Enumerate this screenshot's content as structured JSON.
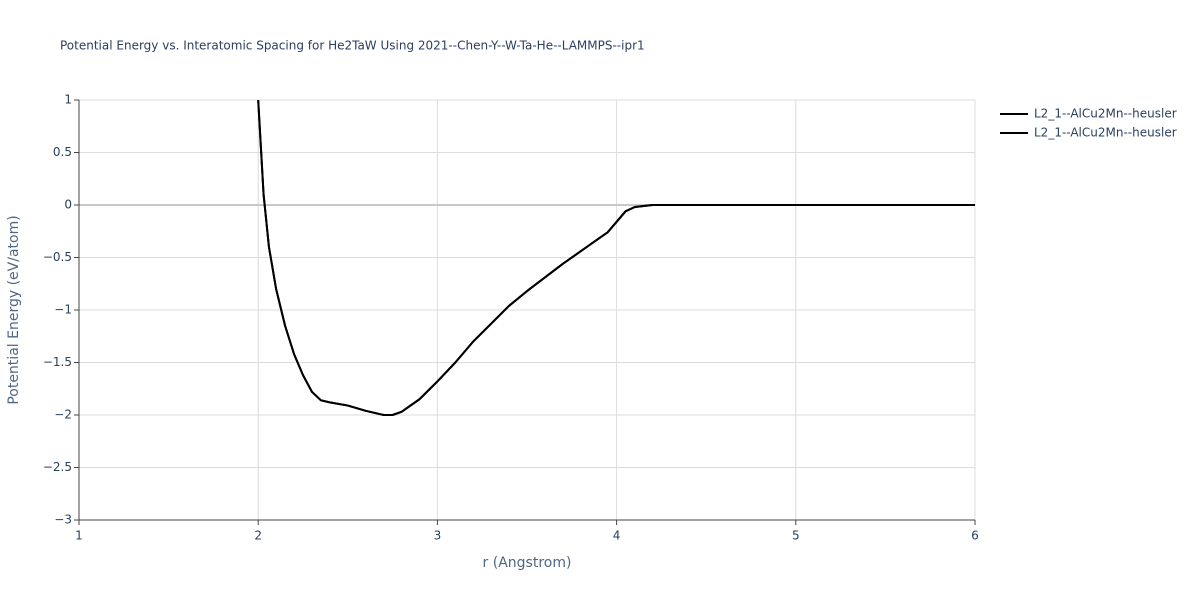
{
  "chart_data": {
    "type": "line",
    "title": "Potential Energy vs. Interatomic Spacing for He2TaW Using 2021--Chen-Y--W-Ta-He--LAMMPS--ipr1",
    "x_label": "r (Angstrom)",
    "y_label": "Potential Energy (eV/atom)",
    "x": [
      2.0,
      2.03,
      2.06,
      2.1,
      2.15,
      2.2,
      2.25,
      2.3,
      2.35,
      2.4,
      2.5,
      2.6,
      2.7,
      2.75,
      2.8,
      2.9,
      3.0,
      3.1,
      3.2,
      3.3,
      3.4,
      3.5,
      3.6,
      3.7,
      3.8,
      3.9,
      3.95,
      4.0,
      4.05,
      4.1,
      4.2,
      5.0,
      6.0
    ],
    "series": [
      {
        "name": "L2_1--AlCu2Mn--heusler",
        "color": "#000000",
        "values": [
          1.0,
          0.1,
          -0.4,
          -0.8,
          -1.15,
          -1.42,
          -1.62,
          -1.78,
          -1.86,
          -1.88,
          -1.91,
          -1.96,
          -2.0,
          -2.0,
          -1.97,
          -1.85,
          -1.68,
          -1.5,
          -1.3,
          -1.13,
          -0.96,
          -0.82,
          -0.69,
          -0.56,
          -0.44,
          -0.32,
          -0.26,
          -0.16,
          -0.06,
          -0.02,
          0,
          0,
          0
        ]
      },
      {
        "name": "L2_1--AlCu2Mn--heusler",
        "color": "#000000",
        "values": [
          1.0,
          0.1,
          -0.4,
          -0.8,
          -1.15,
          -1.42,
          -1.62,
          -1.78,
          -1.86,
          -1.88,
          -1.91,
          -1.96,
          -2.0,
          -2.0,
          -1.97,
          -1.85,
          -1.68,
          -1.5,
          -1.3,
          -1.13,
          -0.96,
          -0.82,
          -0.69,
          -0.56,
          -0.44,
          -0.32,
          -0.26,
          -0.16,
          -0.06,
          -0.02,
          0,
          0,
          0
        ]
      }
    ],
    "xlim": [
      1,
      6
    ],
    "xticks": [
      1,
      2,
      3,
      4,
      5,
      6
    ],
    "ylim": [
      -3,
      1
    ],
    "yticks": [
      {
        "value": -3,
        "label": "−3"
      },
      {
        "value": -2.5,
        "label": "−2.5"
      },
      {
        "value": -2,
        "label": "−2"
      },
      {
        "value": -1.5,
        "label": "−1.5"
      },
      {
        "value": -1,
        "label": "−1"
      },
      {
        "value": -0.5,
        "label": "−0.5"
      },
      0,
      0.5,
      1
    ],
    "grid": true,
    "legend": "right"
  }
}
